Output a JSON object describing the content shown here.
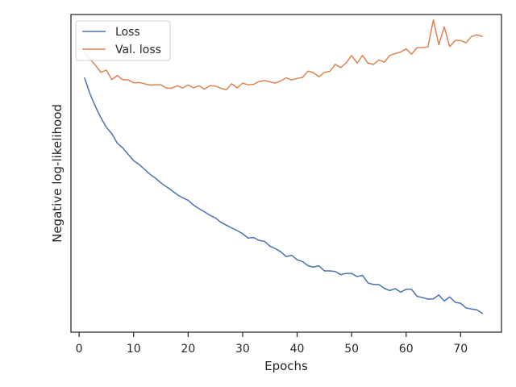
{
  "chart_data": {
    "type": "line",
    "title": "",
    "xlabel": "Epochs",
    "ylabel": "Negative log-likelihood",
    "xlim": [
      -1.5,
      77.5
    ],
    "ylim": [
      0,
      100
    ],
    "xticks": [
      0,
      10,
      20,
      30,
      40,
      50,
      60,
      70
    ],
    "y_tick_labels": false,
    "grid": false,
    "legend_position": "top-left",
    "series": [
      {
        "name": "Loss",
        "color": "#4c72b0",
        "x": [
          1,
          2,
          3,
          4,
          5,
          6,
          7,
          8,
          9,
          10,
          11,
          12,
          13,
          14,
          15,
          16,
          17,
          18,
          19,
          20,
          21,
          22,
          23,
          24,
          25,
          26,
          27,
          28,
          29,
          30,
          31,
          32,
          33,
          34,
          35,
          36,
          37,
          38,
          39,
          40,
          41,
          42,
          43,
          44,
          45,
          46,
          47,
          48,
          49,
          50,
          51,
          52,
          53,
          54,
          55,
          56,
          57,
          58,
          59,
          60,
          61,
          62,
          63,
          64,
          65,
          66,
          67,
          68,
          69,
          70,
          71,
          72,
          73,
          74
        ],
        "values": [
          80,
          75,
          71,
          67.5,
          64.5,
          62.5,
          59.5,
          58,
          56,
          54,
          52.8,
          51.3,
          49.7,
          48.5,
          47,
          45.8,
          44.6,
          43.3,
          42.3,
          41.5,
          40,
          38.9,
          37.9,
          36.8,
          36,
          34.6,
          33.7,
          32.8,
          32,
          31,
          29.6,
          29.8,
          28.9,
          28.6,
          27.1,
          26.3,
          25.3,
          23.8,
          24.2,
          22.8,
          22.2,
          20.9,
          20.5,
          20.9,
          19.3,
          19.3,
          19.1,
          18.1,
          18.5,
          18.5,
          17.5,
          17.9,
          15.5,
          15,
          15,
          13.8,
          13.1,
          13.7,
          12.6,
          13.5,
          13.5,
          11.3,
          10.9,
          10.4,
          10.5,
          11.7,
          9.8,
          11.1,
          9.4,
          9.1,
          7.6,
          7.3,
          7,
          5.9
        ]
      },
      {
        "name": "Val. loss",
        "color": "#dd8452",
        "x": [
          1,
          2,
          3,
          4,
          5,
          6,
          7,
          8,
          9,
          10,
          11,
          12,
          13,
          14,
          15,
          16,
          17,
          18,
          19,
          20,
          21,
          22,
          23,
          24,
          25,
          26,
          27,
          28,
          29,
          30,
          31,
          32,
          33,
          34,
          35,
          36,
          37,
          38,
          39,
          40,
          41,
          42,
          43,
          44,
          45,
          46,
          47,
          48,
          49,
          50,
          51,
          52,
          53,
          54,
          55,
          56,
          57,
          58,
          59,
          60,
          61,
          62,
          63,
          64,
          65,
          66,
          67,
          68,
          69,
          70,
          71,
          72,
          73,
          74
        ],
        "values": [
          88,
          86,
          84,
          81.8,
          82.5,
          79.5,
          80.8,
          79.5,
          79.4,
          78.5,
          78.6,
          78.2,
          77.8,
          77.9,
          77.9,
          76.8,
          76.8,
          77.6,
          76.9,
          77.8,
          76.9,
          77.6,
          76.5,
          77.6,
          77.5,
          76.8,
          76.3,
          78.2,
          76.9,
          78.4,
          77.9,
          78,
          78.9,
          79.2,
          78.8,
          78.4,
          79.1,
          80.1,
          79.4,
          79.9,
          80.2,
          82.2,
          81.7,
          80.4,
          81.8,
          82.1,
          84.3,
          83.3,
          84.8,
          87.1,
          84.7,
          87.1,
          84.7,
          84.3,
          85.7,
          85,
          87.1,
          87.7,
          88.2,
          89.2,
          87.5,
          89.6,
          89.6,
          89.8,
          98.3,
          90.5,
          96.1,
          89.9,
          91.8,
          91.8,
          91.1,
          93.1,
          93.6,
          93.1
        ]
      }
    ]
  }
}
